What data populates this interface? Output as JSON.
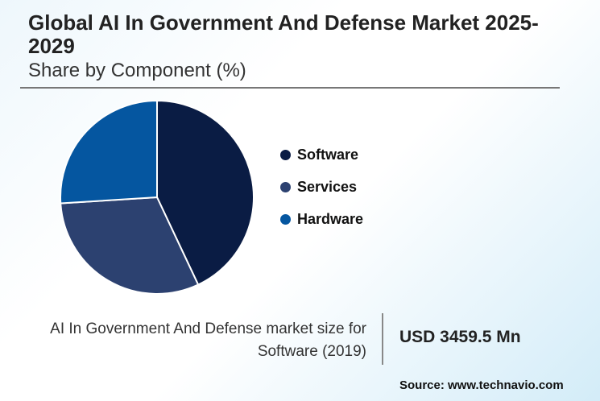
{
  "title": "Global AI In Government And Defense Market 2025-2029",
  "subtitle": "Share by Component (%)",
  "chart_data": {
    "type": "pie",
    "title": "Global AI In Government And Defense Market 2025-2029",
    "subtitle": "Share by Component (%)",
    "categories": [
      "Software",
      "Services",
      "Hardware"
    ],
    "values": [
      43,
      31,
      26
    ],
    "colors": [
      "#0a1c44",
      "#2c4170",
      "#0556a0"
    ],
    "legend_position": "right"
  },
  "note": {
    "line1": "AI In Government And Defense market size for",
    "line2": "Software (2019)",
    "value": "USD 3459.5 Mn"
  },
  "source": "Source: www.technavio.com"
}
